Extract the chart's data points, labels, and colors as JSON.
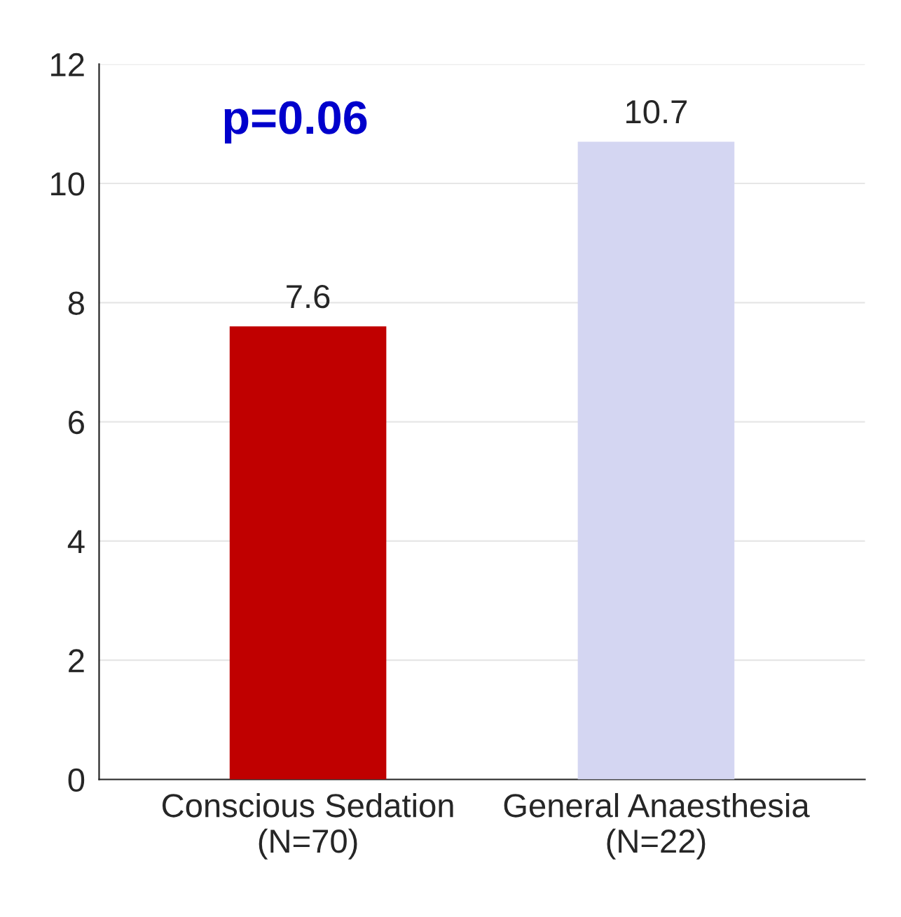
{
  "chart_data": {
    "type": "bar",
    "categories": [
      "Conscious Sedation\n(N=70)",
      "General Anaesthesia\n(N=22)"
    ],
    "values": [
      7.6,
      10.7
    ],
    "colors": [
      "#c00000",
      "#d4d6f2"
    ],
    "ylim": [
      0,
      12
    ],
    "yticks": [
      0,
      2,
      4,
      6,
      8,
      10,
      12
    ],
    "data_labels": true,
    "grid": "y",
    "annotations": [
      "p=0.06"
    ]
  }
}
